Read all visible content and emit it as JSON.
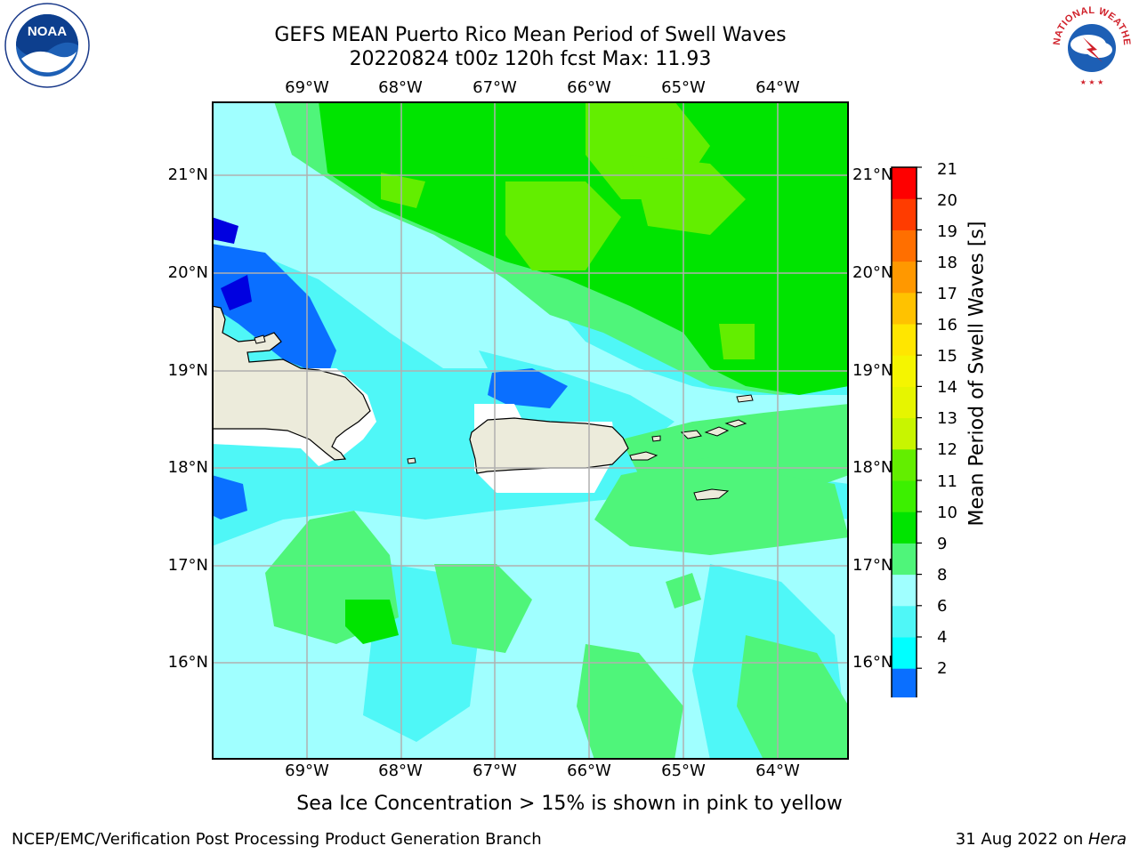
{
  "header": {
    "title": "GEFS MEAN Puerto Rico Mean Period of Swell Waves",
    "subtitle": "20220824 t00z 120h fcst   Max: 11.93"
  },
  "axes": {
    "lon_labels": [
      "69°W",
      "68°W",
      "67°W",
      "66°W",
      "65°W",
      "64°W"
    ],
    "lat_labels": [
      "21°N",
      "20°N",
      "19°N",
      "18°N",
      "17°N",
      "16°N"
    ]
  },
  "colorbar": {
    "label": "Mean Period of Swell Waves [s]",
    "ticks": [
      "21",
      "20",
      "19",
      "18",
      "17",
      "16",
      "15",
      "14",
      "13",
      "12",
      "11",
      "10",
      "9",
      "8",
      "6",
      "4",
      "2"
    ],
    "level_colors": [
      "#0000e0",
      "#0a6fff",
      "#00ffff",
      "#4ff7f7",
      "#a0ffff",
      "#4ff57a",
      "#00e400",
      "#3cf000",
      "#63ee00",
      "#c8f500",
      "#e6f500",
      "#f5f500",
      "#ffe600",
      "#ffc200",
      "#ff9800",
      "#ff6f00",
      "#ff3c00",
      "#fe0000"
    ]
  },
  "caption": "Sea Ice Concentration > 15% is shown in pink to yellow",
  "footer": {
    "left": "NCEP/EMC/Verification Post Processing Product Generation Branch",
    "date": "31 Aug 2022 on ",
    "machine": "Hera"
  },
  "logos": {
    "left": "noaa-logo",
    "right": "national-weather-service-logo",
    "left_text": "NOAA",
    "right_ring_text": "NATIONAL WEATHER SERVICE"
  }
}
